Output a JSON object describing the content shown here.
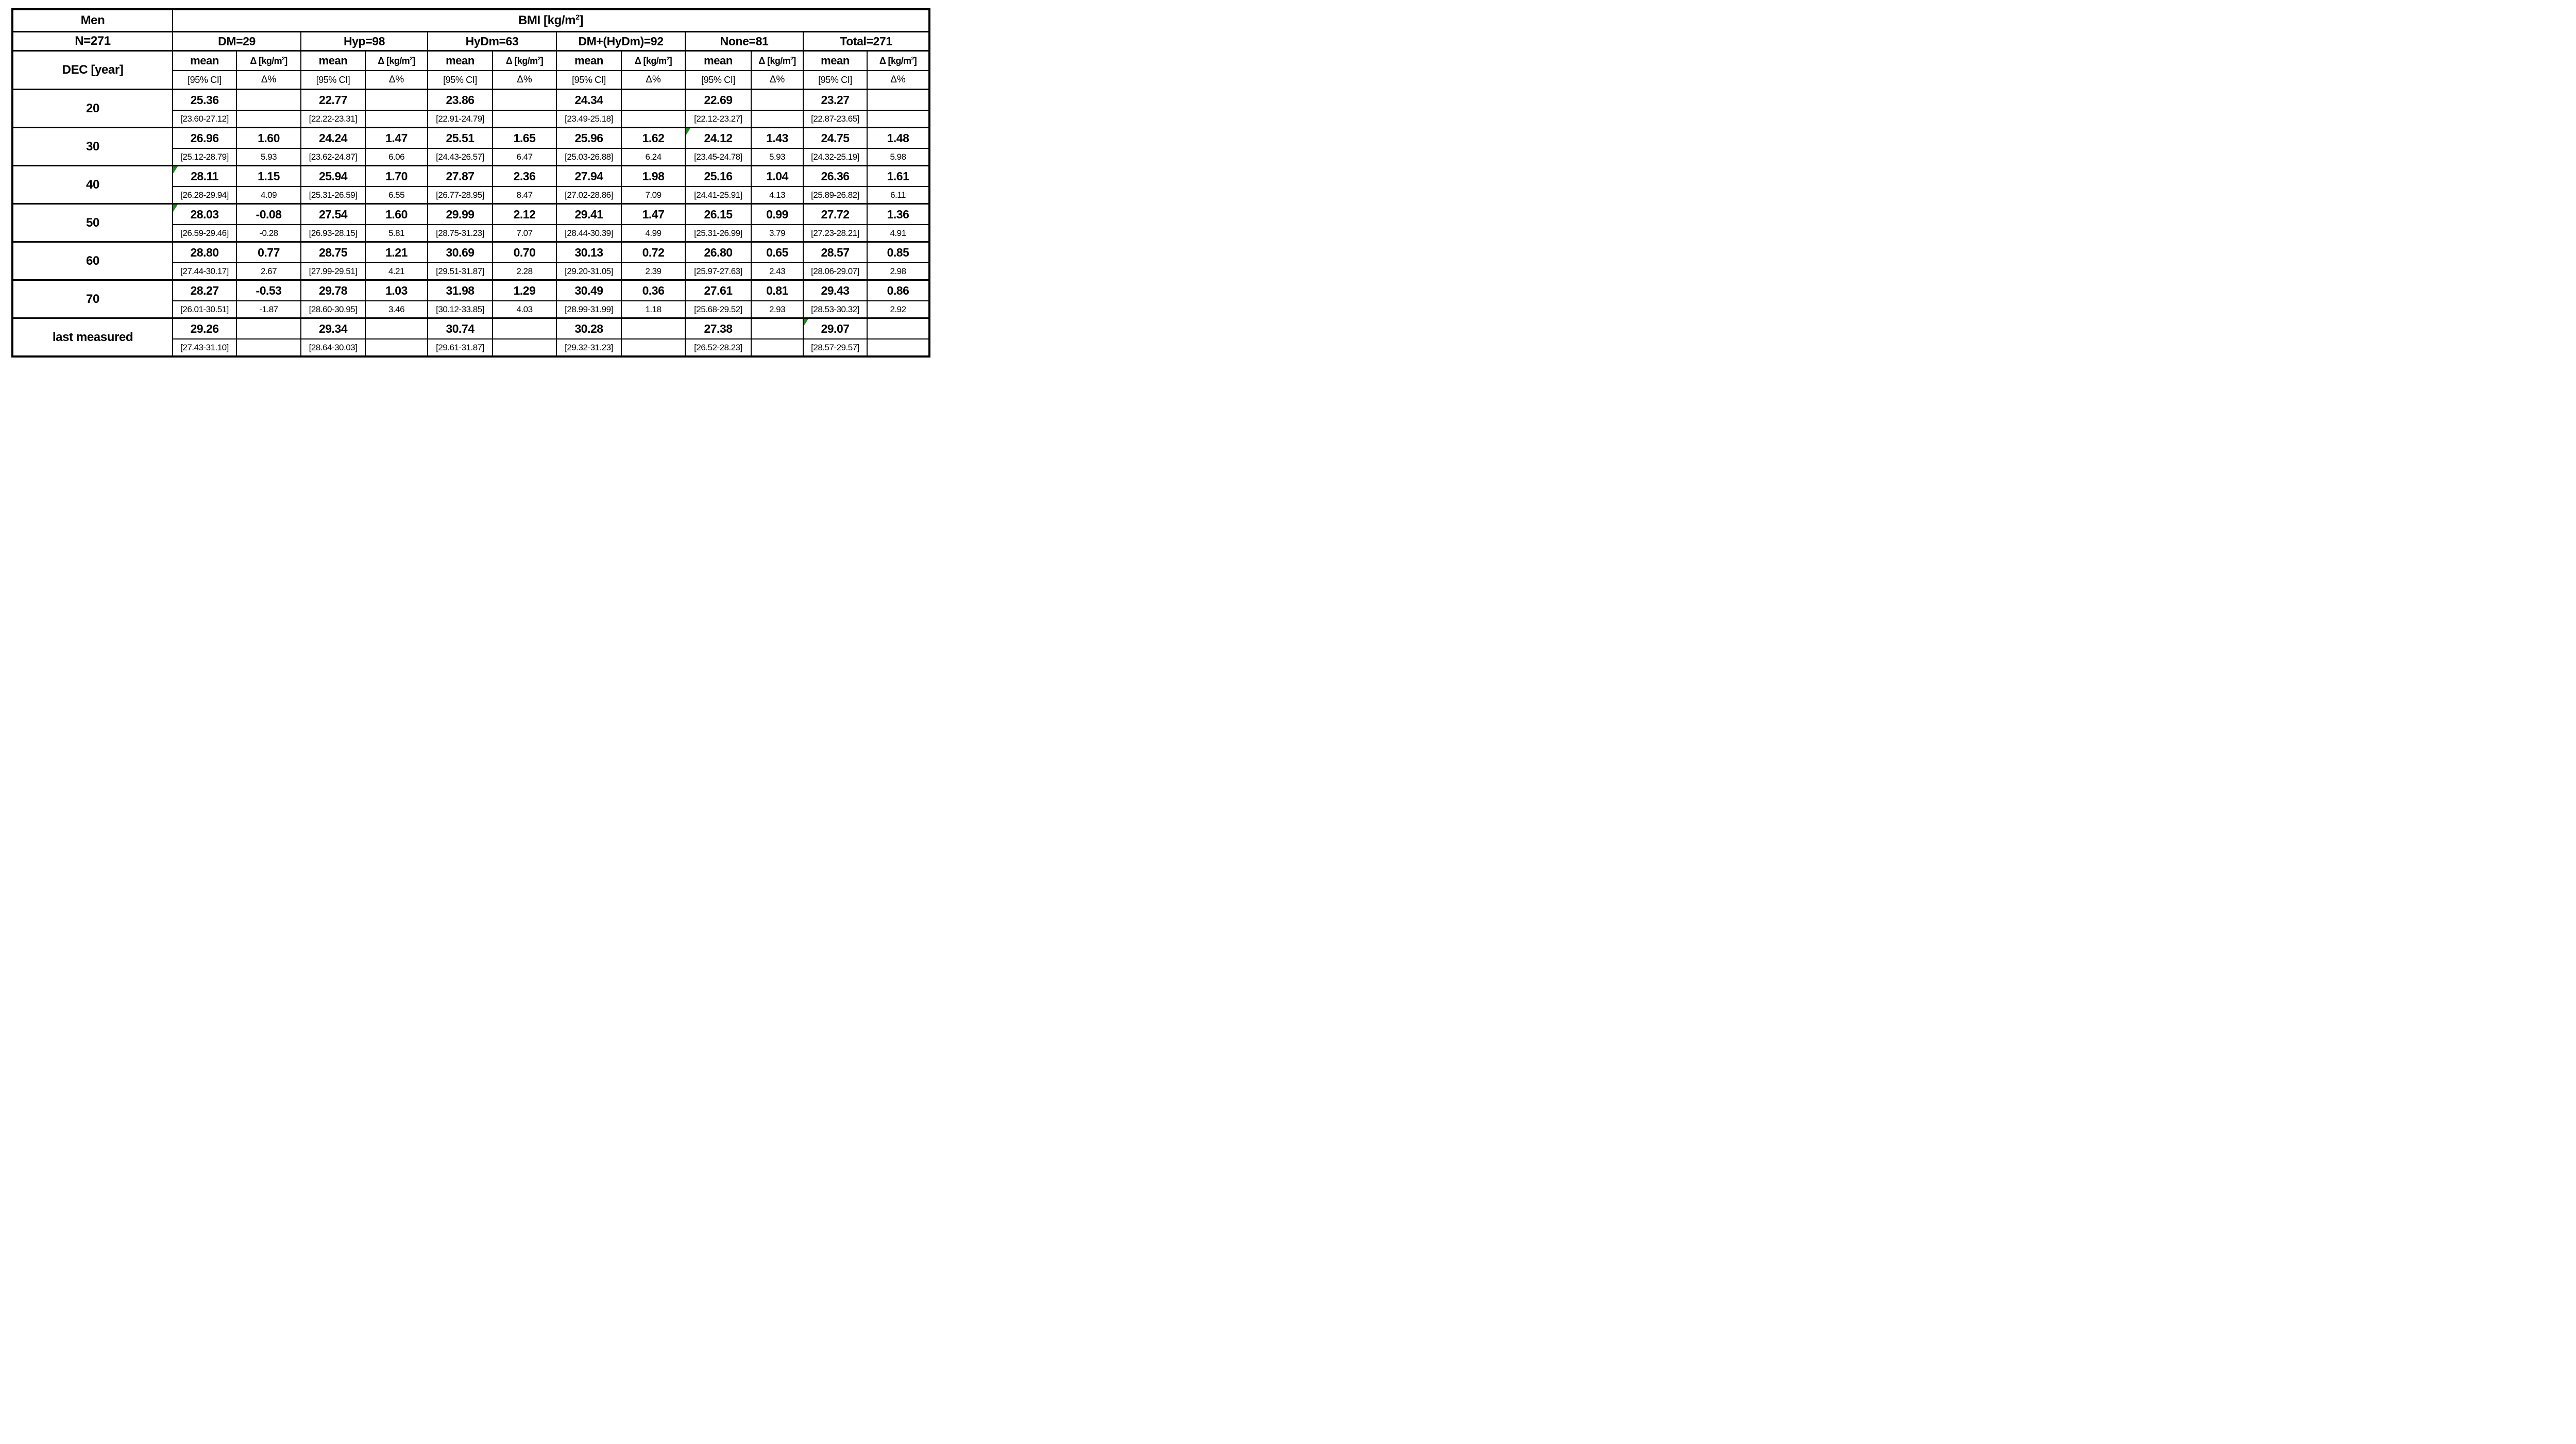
{
  "meta": {
    "gender_label": "Men",
    "n_label": "N=271",
    "dec_label": "DEC [year]"
  },
  "bmi_header": {
    "prefix": "BMI [kg/m",
    "sup": "2",
    "suffix": "]"
  },
  "subheaders": {
    "mean": "mean",
    "delta_prefix": "Δ [kg/m",
    "delta_sup": "2",
    "delta_suffix": "]",
    "ci": "[95% CI]",
    "delta_pct": "Δ%"
  },
  "groups": [
    "DM=29",
    "Hyp=98",
    "HyDm=63",
    "DM+(HyDm)=92",
    "None=81",
    "Total=271"
  ],
  "group_keys": [
    "dm",
    "hyp",
    "hydm",
    "dm-hydm",
    "none",
    "total"
  ],
  "rows": [
    {
      "label": "20",
      "cells": [
        {
          "mean": "25.36",
          "ci": "[23.60-27.12]",
          "delta": "",
          "dpct": "",
          "flag": false
        },
        {
          "mean": "22.77",
          "ci": "[22.22-23.31]",
          "delta": "",
          "dpct": "",
          "flag": false
        },
        {
          "mean": "23.86",
          "ci": "[22.91-24.79]",
          "delta": "",
          "dpct": "",
          "flag": false
        },
        {
          "mean": "24.34",
          "ci": "[23.49-25.18]",
          "delta": "",
          "dpct": "",
          "flag": false
        },
        {
          "mean": "22.69",
          "ci": "[22.12-23.27]",
          "delta": "",
          "dpct": "",
          "flag": false
        },
        {
          "mean": "23.27",
          "ci": "[22.87-23.65]",
          "delta": "",
          "dpct": "",
          "flag": false
        }
      ]
    },
    {
      "label": "30",
      "cells": [
        {
          "mean": "26.96",
          "ci": "[25.12-28.79]",
          "delta": "1.60",
          "dpct": "5.93",
          "flag": false
        },
        {
          "mean": "24.24",
          "ci": "[23.62-24.87]",
          "delta": "1.47",
          "dpct": "6.06",
          "flag": false
        },
        {
          "mean": "25.51",
          "ci": "[24.43-26.57]",
          "delta": "1.65",
          "dpct": "6.47",
          "flag": false
        },
        {
          "mean": "25.96",
          "ci": "[25.03-26.88]",
          "delta": "1.62",
          "dpct": "6.24",
          "flag": false
        },
        {
          "mean": "24.12",
          "ci": "[23.45-24.78]",
          "delta": "1.43",
          "dpct": "5.93",
          "flag": true
        },
        {
          "mean": "24.75",
          "ci": "[24.32-25.19]",
          "delta": "1.48",
          "dpct": "5.98",
          "flag": false
        }
      ]
    },
    {
      "label": "40",
      "cells": [
        {
          "mean": "28.11",
          "ci": "[26.28-29.94]",
          "delta": "1.15",
          "dpct": "4.09",
          "flag": true
        },
        {
          "mean": "25.94",
          "ci": "[25.31-26.59]",
          "delta": "1.70",
          "dpct": "6.55",
          "flag": false
        },
        {
          "mean": "27.87",
          "ci": "[26.77-28.95]",
          "delta": "2.36",
          "dpct": "8.47",
          "flag": false
        },
        {
          "mean": "27.94",
          "ci": "[27.02-28.86]",
          "delta": "1.98",
          "dpct": "7.09",
          "flag": false
        },
        {
          "mean": "25.16",
          "ci": "[24.41-25.91]",
          "delta": "1.04",
          "dpct": "4.13",
          "flag": false
        },
        {
          "mean": "26.36",
          "ci": "[25.89-26.82]",
          "delta": "1.61",
          "dpct": "6.11",
          "flag": false
        }
      ]
    },
    {
      "label": "50",
      "cells": [
        {
          "mean": "28.03",
          "ci": "[26.59-29.46]",
          "delta": "-0.08",
          "dpct": "-0.28",
          "flag": true
        },
        {
          "mean": "27.54",
          "ci": "[26.93-28.15]",
          "delta": "1.60",
          "dpct": "5.81",
          "flag": false
        },
        {
          "mean": "29.99",
          "ci": "[28.75-31.23]",
          "delta": "2.12",
          "dpct": "7.07",
          "flag": false
        },
        {
          "mean": "29.41",
          "ci": "[28.44-30.39]",
          "delta": "1.47",
          "dpct": "4.99",
          "flag": false
        },
        {
          "mean": "26.15",
          "ci": "[25.31-26.99]",
          "delta": "0.99",
          "dpct": "3.79",
          "flag": false
        },
        {
          "mean": "27.72",
          "ci": "[27.23-28.21]",
          "delta": "1.36",
          "dpct": "4.91",
          "flag": false
        }
      ]
    },
    {
      "label": "60",
      "cells": [
        {
          "mean": "28.80",
          "ci": "[27.44-30.17]",
          "delta": "0.77",
          "dpct": "2.67",
          "flag": false
        },
        {
          "mean": "28.75",
          "ci": "[27.99-29.51]",
          "delta": "1.21",
          "dpct": "4.21",
          "flag": false
        },
        {
          "mean": "30.69",
          "ci": "[29.51-31.87]",
          "delta": "0.70",
          "dpct": "2.28",
          "flag": false
        },
        {
          "mean": "30.13",
          "ci": "[29.20-31.05]",
          "delta": "0.72",
          "dpct": "2.39",
          "flag": false
        },
        {
          "mean": "26.80",
          "ci": "[25.97-27.63]",
          "delta": "0.65",
          "dpct": "2.43",
          "flag": false
        },
        {
          "mean": "28.57",
          "ci": "[28.06-29.07]",
          "delta": "0.85",
          "dpct": "2.98",
          "flag": false
        }
      ]
    },
    {
      "label": "70",
      "cells": [
        {
          "mean": "28.27",
          "ci": "[26.01-30.51]",
          "delta": "-0.53",
          "dpct": "-1.87",
          "flag": false
        },
        {
          "mean": "29.78",
          "ci": "[28.60-30.95]",
          "delta": "1.03",
          "dpct": "3.46",
          "flag": false
        },
        {
          "mean": "31.98",
          "ci": "[30.12-33.85]",
          "delta": "1.29",
          "dpct": "4.03",
          "flag": false
        },
        {
          "mean": "30.49",
          "ci": "[28.99-31.99]",
          "delta": "0.36",
          "dpct": "1.18",
          "flag": false
        },
        {
          "mean": "27.61",
          "ci": "[25.68-29.52]",
          "delta": "0.81",
          "dpct": "2.93",
          "flag": false
        },
        {
          "mean": "29.43",
          "ci": "[28.53-30.32]",
          "delta": "0.86",
          "dpct": "2.92",
          "flag": false
        }
      ]
    },
    {
      "label": "last measured",
      "cells": [
        {
          "mean": "29.26",
          "ci": "[27.43-31.10]",
          "delta": "",
          "dpct": "",
          "flag": false
        },
        {
          "mean": "29.34",
          "ci": "[28.64-30.03]",
          "delta": "",
          "dpct": "",
          "flag": false
        },
        {
          "mean": "30.74",
          "ci": "[29.61-31.87]",
          "delta": "",
          "dpct": "",
          "flag": false
        },
        {
          "mean": "30.28",
          "ci": "[29.32-31.23]",
          "delta": "",
          "dpct": "",
          "flag": false
        },
        {
          "mean": "27.38",
          "ci": "[26.52-28.23]",
          "delta": "",
          "dpct": "",
          "flag": false
        },
        {
          "mean": "29.07",
          "ci": "[28.57-29.57]",
          "delta": "",
          "dpct": "",
          "flag": true
        }
      ]
    }
  ],
  "colors": {
    "flag_green": "#149114",
    "border": "#000000",
    "background": "#ffffff"
  }
}
